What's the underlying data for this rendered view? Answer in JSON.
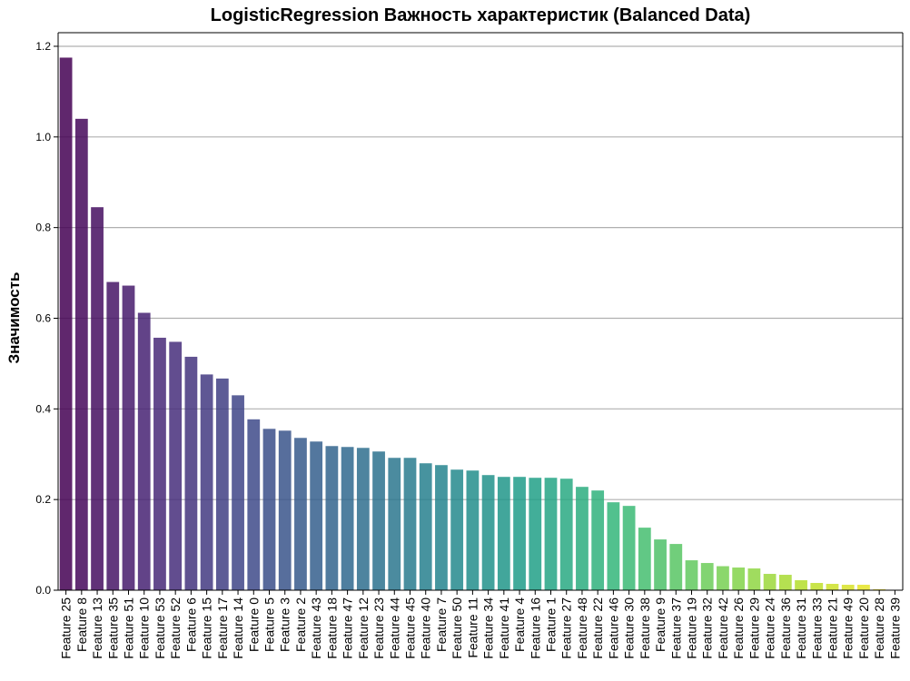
{
  "chart_data": {
    "type": "bar",
    "title": "LogisticRegression Важность характеристик (Balanced Data)",
    "xlabel": "",
    "ylabel": "Значимость",
    "ylim": [
      0,
      1.23
    ],
    "yticks": [
      "0.0",
      "0.2",
      "0.4",
      "0.6",
      "0.8",
      "1.0",
      "1.2"
    ],
    "grid": "horizontal",
    "categories": [
      "Feature 25",
      "Feature 8",
      "Feature 13",
      "Feature 35",
      "Feature 51",
      "Feature 10",
      "Feature 53",
      "Feature 52",
      "Feature 6",
      "Feature 15",
      "Feature 17",
      "Feature 14",
      "Feature 0",
      "Feature 5",
      "Feature 3",
      "Feature 2",
      "Feature 43",
      "Feature 18",
      "Feature 47",
      "Feature 12",
      "Feature 23",
      "Feature 44",
      "Feature 45",
      "Feature 40",
      "Feature 7",
      "Feature 50",
      "Feature 11",
      "Feature 34",
      "Feature 41",
      "Feature 4",
      "Feature 16",
      "Feature 1",
      "Feature 27",
      "Feature 48",
      "Feature 22",
      "Feature 46",
      "Feature 30",
      "Feature 38",
      "Feature 9",
      "Feature 37",
      "Feature 19",
      "Feature 32",
      "Feature 42",
      "Feature 26",
      "Feature 29",
      "Feature 24",
      "Feature 36",
      "Feature 31",
      "Feature 33",
      "Feature 21",
      "Feature 49",
      "Feature 20",
      "Feature 28",
      "Feature 39"
    ],
    "values": [
      1.175,
      1.04,
      0.845,
      0.68,
      0.672,
      0.612,
      0.557,
      0.548,
      0.515,
      0.476,
      0.467,
      0.43,
      0.377,
      0.356,
      0.352,
      0.336,
      0.328,
      0.318,
      0.316,
      0.314,
      0.306,
      0.292,
      0.292,
      0.28,
      0.276,
      0.266,
      0.264,
      0.254,
      0.25,
      0.25,
      0.248,
      0.248,
      0.246,
      0.228,
      0.22,
      0.194,
      0.186,
      0.138,
      0.112,
      0.102,
      0.066,
      0.06,
      0.053,
      0.05,
      0.048,
      0.036,
      0.034,
      0.022,
      0.016,
      0.014,
      0.012,
      0.012,
      0.002,
      0.0
    ],
    "colormap": "viridis"
  }
}
